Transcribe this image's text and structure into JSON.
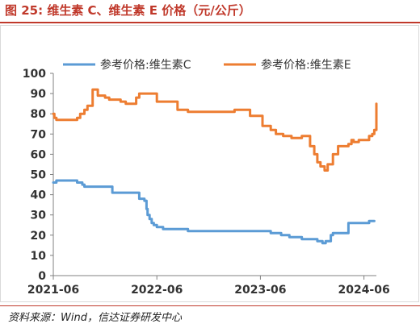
{
  "figure": {
    "title": "图 25:  维生素 C、维生素 E 价格（元/公斤）",
    "source": "资料来源：Wind，信达证券研发中心"
  },
  "chart_data": {
    "type": "line",
    "title": "",
    "xlabel": "",
    "ylabel": "",
    "ylim": [
      0,
      100
    ],
    "y_ticks": [
      "0",
      "10",
      "20",
      "30",
      "40",
      "50",
      "60",
      "70",
      "80",
      "90",
      "100"
    ],
    "x_ticks": [
      {
        "label": "2021-06",
        "x": 2021.5
      },
      {
        "label": "2022-06",
        "x": 2022.5
      },
      {
        "label": "2023-06",
        "x": 2023.5
      },
      {
        "label": "2024-06",
        "x": 2024.5
      }
    ],
    "xlim": [
      2021.5,
      2024.62
    ],
    "legend_position": "top",
    "grid": false,
    "series": [
      {
        "name": "参考价格:维生素C",
        "color": "#5b9bd5",
        "x": [
          2021.5,
          2021.51,
          2021.53,
          2021.72,
          2021.73,
          2021.78,
          2021.8,
          2021.84,
          2021.85,
          2022.05,
          2022.07,
          2022.32,
          2022.33,
          2022.38,
          2022.4,
          2022.41,
          2022.43,
          2022.45,
          2022.47,
          2022.5,
          2022.53,
          2022.56,
          2022.6,
          2022.65,
          2022.7,
          2022.75,
          2022.8,
          2022.85,
          2023.0,
          2023.12,
          2023.25,
          2023.4,
          2023.5,
          2023.6,
          2023.65,
          2023.7,
          2023.78,
          2023.82,
          2023.9,
          2023.95,
          2024.05,
          2024.1,
          2024.13,
          2024.18,
          2024.2,
          2024.3,
          2024.35,
          2024.4,
          2024.48,
          2024.55,
          2024.6
        ],
        "y": [
          46,
          46,
          47,
          47,
          46,
          45,
          44,
          44,
          44,
          44,
          41,
          41,
          38,
          37,
          33,
          30,
          28,
          26,
          25,
          24,
          24,
          23,
          23,
          23,
          23,
          23,
          22,
          22,
          22,
          22,
          22,
          22,
          22,
          21,
          21,
          20,
          19,
          19,
          18,
          18,
          17,
          16,
          17,
          20,
          21,
          21,
          26,
          26,
          26,
          27,
          27
        ]
      },
      {
        "name": "参考价格:维生素E",
        "color": "#ed7d31",
        "x": [
          2021.5,
          2021.51,
          2021.53,
          2021.7,
          2021.73,
          2021.76,
          2021.78,
          2021.8,
          2021.83,
          2021.85,
          2021.88,
          2021.9,
          2021.93,
          2021.95,
          2022.0,
          2022.04,
          2022.08,
          2022.1,
          2022.12,
          2022.15,
          2022.2,
          2022.3,
          2022.33,
          2022.37,
          2022.4,
          2022.45,
          2022.5,
          2022.7,
          2022.8,
          2023.2,
          2023.25,
          2023.35,
          2023.4,
          2023.45,
          2023.52,
          2023.6,
          2023.65,
          2023.72,
          2023.8,
          2023.85,
          2023.9,
          2023.95,
          2023.98,
          2024.02,
          2024.05,
          2024.08,
          2024.12,
          2024.15,
          2024.2,
          2024.25,
          2024.3,
          2024.35,
          2024.38,
          2024.4,
          2024.45,
          2024.5,
          2024.55,
          2024.58,
          2024.6,
          2024.62
        ],
        "y": [
          80,
          78,
          77,
          77,
          78,
          80,
          80,
          82,
          84,
          84,
          92,
          92,
          89,
          89,
          88,
          87,
          87,
          87,
          87,
          86,
          85,
          88,
          90,
          90,
          90,
          90,
          86,
          82,
          81,
          81,
          82,
          82,
          79,
          79,
          74,
          72,
          70,
          69,
          68,
          68,
          69,
          69,
          64,
          60,
          56,
          54,
          52,
          55,
          60,
          64,
          64,
          65,
          67,
          66,
          67,
          67,
          69,
          70,
          72,
          85
        ]
      }
    ]
  }
}
